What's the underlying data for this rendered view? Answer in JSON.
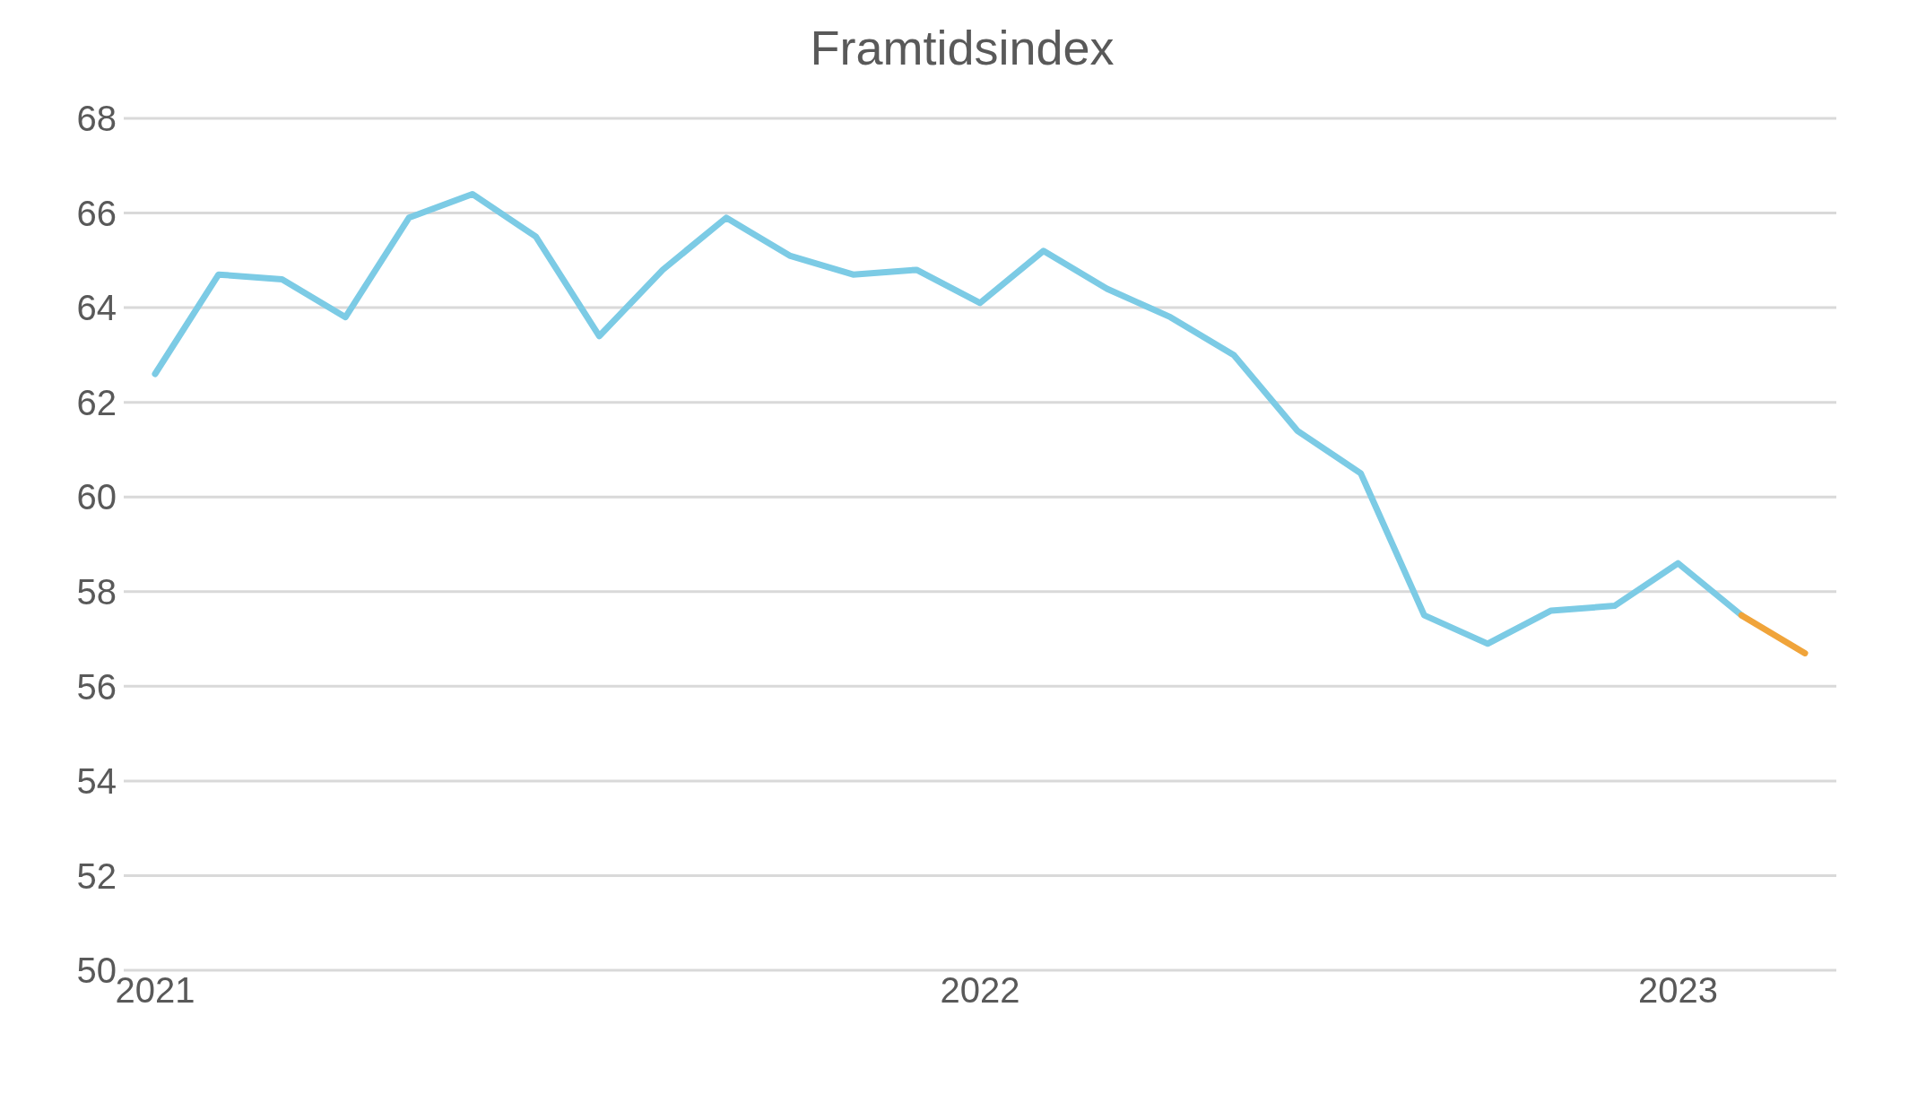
{
  "chart_data": {
    "type": "line",
    "title": "Framtidsindex",
    "categories": [
      "2021",
      null,
      null,
      null,
      null,
      null,
      null,
      null,
      null,
      null,
      null,
      null,
      null,
      "2022",
      null,
      null,
      null,
      null,
      null,
      null,
      null,
      null,
      null,
      null,
      "2023",
      null,
      null
    ],
    "series": [
      {
        "color": "#7ccbe5",
        "values": [
          62.6,
          64.7,
          64.6,
          63.8,
          65.9,
          66.4,
          65.5,
          63.4,
          64.8,
          65.9,
          65.1,
          64.7,
          64.8,
          64.1,
          65.2,
          64.4,
          63.8,
          63.0,
          61.4,
          60.5,
          57.5,
          56.9,
          57.6,
          57.7,
          58.6,
          57.5,
          null
        ]
      },
      {
        "color": "#f0a43a",
        "values": [
          null,
          null,
          null,
          null,
          null,
          null,
          null,
          null,
          null,
          null,
          null,
          null,
          null,
          null,
          null,
          null,
          null,
          null,
          null,
          null,
          null,
          null,
          null,
          null,
          null,
          57.5,
          56.7
        ]
      }
    ],
    "ylim": [
      50,
      68
    ],
    "yticks": [
      50,
      52,
      54,
      56,
      58,
      60,
      62,
      64,
      66,
      68
    ],
    "grid": "y",
    "legend": false,
    "marker": "none",
    "line_style": "solid"
  }
}
